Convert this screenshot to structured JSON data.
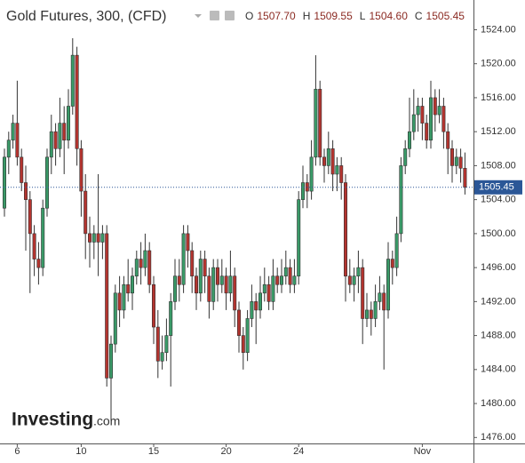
{
  "chart_data": {
    "type": "candlestick",
    "title": "Gold Futures, 300, (CFD)",
    "ohlc_header": [
      {
        "label": "O",
        "value": "1507.70"
      },
      {
        "label": "H",
        "value": "1509.55"
      },
      {
        "label": "L",
        "value": "1504.60"
      },
      {
        "label": "C",
        "value": "1505.45"
      }
    ],
    "watermark": [
      "Investing",
      ".com"
    ],
    "up_color": "#3a9a68",
    "down_color": "#b3342f",
    "last_price": {
      "value": 1505.45,
      "label": "1505.45"
    },
    "ylim": [
      1475.3,
      1527.5
    ],
    "yticks": [
      {
        "value": 1476,
        "label": "1476.00"
      },
      {
        "value": 1480,
        "label": "1480.00"
      },
      {
        "value": 1484,
        "label": "1484.00"
      },
      {
        "value": 1488,
        "label": "1488.00"
      },
      {
        "value": 1492,
        "label": "1492.00"
      },
      {
        "value": 1496,
        "label": "1496.00"
      },
      {
        "value": 1500,
        "label": "1500.00"
      },
      {
        "value": 1504,
        "label": "1504.00"
      },
      {
        "value": 1508,
        "label": "1508.00"
      },
      {
        "value": 1512,
        "label": "1512.00"
      },
      {
        "value": 1516,
        "label": "1516.00"
      },
      {
        "value": 1520,
        "label": "1520.00"
      },
      {
        "value": 1524,
        "label": "1524.00"
      }
    ],
    "categories": [
      null,
      null,
      null,
      "6",
      null,
      null,
      null,
      null,
      null,
      null,
      null,
      null,
      null,
      null,
      null,
      null,
      null,
      null,
      "10",
      null,
      null,
      null,
      null,
      null,
      null,
      null,
      null,
      null,
      null,
      null,
      null,
      null,
      null,
      null,
      null,
      "15",
      null,
      null,
      null,
      null,
      null,
      null,
      null,
      null,
      null,
      null,
      null,
      null,
      null,
      null,
      null,
      null,
      "20",
      null,
      null,
      null,
      null,
      null,
      null,
      null,
      null,
      null,
      null,
      null,
      null,
      null,
      null,
      null,
      null,
      "24",
      null,
      null,
      null,
      null,
      null,
      null,
      null,
      null,
      null,
      null,
      null,
      null,
      null,
      null,
      null,
      null,
      null,
      null,
      null,
      null,
      null,
      null,
      null,
      null,
      null,
      null,
      null,
      null,
      "Nov",
      null,
      null,
      null,
      null,
      null,
      null,
      null,
      null,
      null,
      null
    ],
    "open": [
      1503,
      1509,
      1511,
      1513,
      1509,
      1506,
      1504,
      1500,
      1497,
      1496,
      1503,
      1509,
      1512,
      1510,
      1513,
      1511,
      1515,
      1521,
      1510,
      1505,
      1500,
      1499,
      1500,
      1499,
      1500,
      1483,
      1487,
      1493,
      1491,
      1494,
      1493,
      1495,
      1497,
      1496,
      1498,
      1494,
      1489,
      1485,
      1486,
      1488,
      1492,
      1495,
      1494,
      1500,
      1498,
      1495,
      1493,
      1497,
      1495,
      1492,
      1496,
      1494,
      1495,
      1493,
      1495,
      1491,
      1488,
      1486,
      1490,
      1492,
      1491,
      1493,
      1494,
      1492,
      1495,
      1494,
      1495,
      1496,
      1494,
      1495,
      1504,
      1506,
      1505,
      1509,
      1517,
      1509,
      1508,
      1510,
      1507,
      1508,
      1506,
      1495,
      1494,
      1495,
      1496,
      1490,
      1491,
      1490,
      1492,
      1493,
      1491,
      1497,
      1496,
      1500,
      1508,
      1510,
      1512,
      1514,
      1515,
      1513,
      1511,
      1516,
      1514,
      1515,
      1512,
      1510,
      1508,
      1509,
      1507.7
    ],
    "high": [
      1510,
      1512,
      1514,
      1518,
      1510,
      1508,
      1505,
      1501,
      1499,
      1504,
      1510,
      1514,
      1513,
      1516,
      1515,
      1517,
      1523,
      1522,
      1511,
      1507,
      1502,
      1501,
      1507,
      1501,
      1501,
      1488,
      1494,
      1495,
      1495,
      1497,
      1496,
      1498,
      1499,
      1500,
      1499,
      1495,
      1491,
      1488,
      1490,
      1493,
      1497,
      1497,
      1501,
      1501,
      1499,
      1496,
      1498,
      1498,
      1496,
      1497,
      1497,
      1497,
      1496,
      1498,
      1496,
      1492,
      1489,
      1491,
      1494,
      1493,
      1495,
      1496,
      1495,
      1497,
      1496,
      1497,
      1498,
      1497,
      1497,
      1505,
      1508,
      1507,
      1511,
      1521,
      1518,
      1510,
      1512,
      1511,
      1509,
      1509,
      1507,
      1497,
      1496,
      1498,
      1497,
      1493,
      1492,
      1494,
      1495,
      1494,
      1499,
      1498,
      1502,
      1509,
      1511,
      1516,
      1517,
      1516,
      1516,
      1514,
      1518,
      1517,
      1517,
      1516,
      1513,
      1511,
      1510,
      1510,
      1509.55
    ],
    "low": [
      1502,
      1507,
      1510,
      1508,
      1505,
      1498,
      1493,
      1495,
      1494,
      1495,
      1502,
      1507,
      1508,
      1509,
      1507,
      1510,
      1514,
      1508,
      1502,
      1497,
      1496,
      1497,
      1495,
      1497,
      1482,
      1478,
      1486,
      1489,
      1490,
      1492,
      1491,
      1494,
      1494,
      1495,
      1493,
      1487,
      1483,
      1484,
      1485,
      1482,
      1491,
      1492,
      1493,
      1496,
      1493,
      1491,
      1492,
      1493,
      1490,
      1491,
      1492,
      1493,
      1491,
      1492,
      1489,
      1486,
      1484,
      1485,
      1489,
      1487,
      1490,
      1492,
      1491,
      1491,
      1493,
      1493,
      1494,
      1493,
      1493,
      1494,
      1503,
      1503,
      1504,
      1508,
      1508,
      1506,
      1507,
      1505,
      1505,
      1504,
      1492,
      1493,
      1492,
      1493,
      1487,
      1489,
      1488,
      1489,
      1491,
      1484,
      1490,
      1494,
      1495,
      1499,
      1507,
      1509,
      1511,
      1512,
      1511,
      1510,
      1510,
      1512,
      1513,
      1510,
      1507,
      1506,
      1507,
      1506,
      1504.6
    ],
    "close": [
      1509,
      1511,
      1513,
      1509,
      1506,
      1504,
      1500,
      1497,
      1496,
      1503,
      1509,
      1512,
      1510,
      1513,
      1511,
      1515,
      1521,
      1510,
      1505,
      1500,
      1499,
      1500,
      1499,
      1500,
      1483,
      1487,
      1493,
      1491,
      1494,
      1493,
      1495,
      1497,
      1496,
      1498,
      1494,
      1489,
      1485,
      1486,
      1488,
      1492,
      1495,
      1494,
      1500,
      1498,
      1495,
      1493,
      1497,
      1495,
      1492,
      1496,
      1494,
      1495,
      1493,
      1495,
      1491,
      1488,
      1486,
      1490,
      1492,
      1491,
      1493,
      1494,
      1492,
      1495,
      1494,
      1495,
      1496,
      1494,
      1495,
      1504,
      1506,
      1505,
      1509,
      1517,
      1509,
      1508,
      1510,
      1507,
      1508,
      1506,
      1495,
      1494,
      1495,
      1496,
      1490,
      1491,
      1490,
      1492,
      1493,
      1491,
      1497,
      1496,
      1500,
      1508,
      1510,
      1512,
      1514,
      1515,
      1513,
      1511,
      1516,
      1514,
      1515,
      1512,
      1510,
      1508,
      1509,
      1507.7,
      1505.45
    ]
  }
}
